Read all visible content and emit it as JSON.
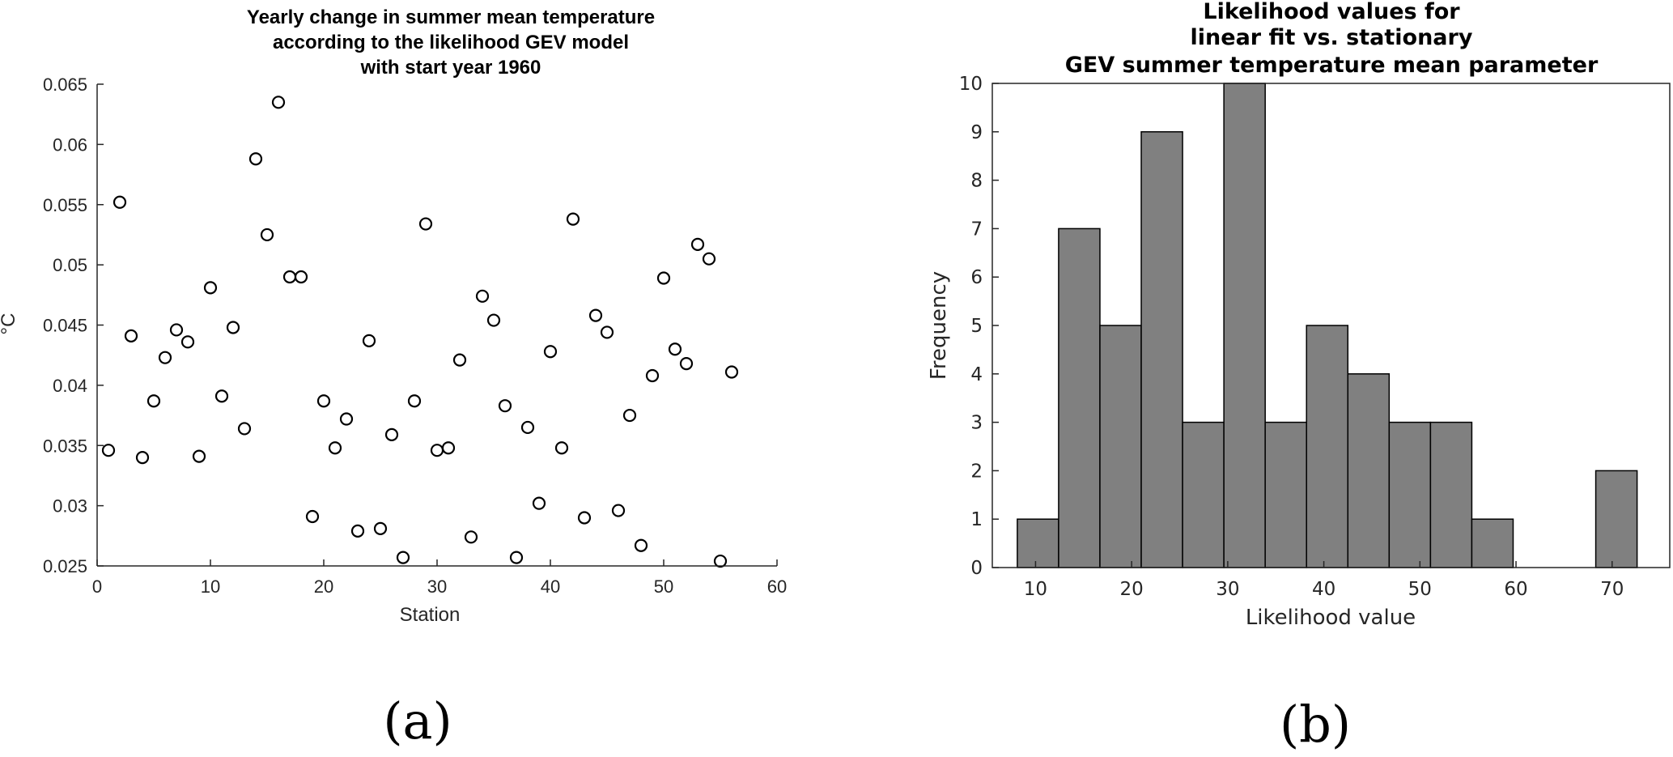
{
  "chart_data": [
    {
      "type": "scatter",
      "title": [
        "Yearly change in summer mean temperature",
        "according to the likelihood GEV model",
        "with start year 1960"
      ],
      "xlabel": "Station",
      "ylabel": "°C",
      "xlim": [
        0,
        60
      ],
      "ylim": [
        0.025,
        0.065
      ],
      "xticks": [
        0,
        10,
        20,
        30,
        40,
        50,
        60
      ],
      "yticks": [
        0.025,
        0.03,
        0.035,
        0.04,
        0.045,
        0.05,
        0.055,
        0.06,
        0.065
      ],
      "ytick_labels": [
        "0.025",
        "0.03",
        "0.035",
        "0.04",
        "0.045",
        "0.05",
        "0.055",
        "0.06",
        "0.065"
      ],
      "x": [
        1,
        2,
        3,
        4,
        5,
        6,
        7,
        8,
        9,
        10,
        11,
        12,
        13,
        14,
        15,
        16,
        17,
        18,
        19,
        20,
        21,
        22,
        23,
        24,
        25,
        26,
        27,
        28,
        29,
        30,
        31,
        32,
        33,
        34,
        35,
        36,
        37,
        38,
        39,
        40,
        41,
        42,
        43,
        44,
        45,
        46,
        47,
        48,
        49,
        50,
        51,
        52,
        53,
        54,
        55,
        56
      ],
      "y": [
        0.0346,
        0.0552,
        0.0441,
        0.034,
        0.0387,
        0.0423,
        0.0446,
        0.0436,
        0.0341,
        0.0481,
        0.0391,
        0.0448,
        0.0364,
        0.0588,
        0.0525,
        0.0635,
        0.049,
        0.049,
        0.0291,
        0.0387,
        0.0348,
        0.0372,
        0.0279,
        0.0437,
        0.0281,
        0.0359,
        0.0257,
        0.0387,
        0.0534,
        0.0346,
        0.0348,
        0.0421,
        0.0274,
        0.0474,
        0.0454,
        0.0383,
        0.0257,
        0.0365,
        0.0302,
        0.0428,
        0.0348,
        0.0538,
        0.029,
        0.0458,
        0.0444,
        0.0296,
        0.0375,
        0.0267,
        0.0408,
        0.0489,
        0.043,
        0.0418,
        0.0517,
        0.0505,
        0.0254,
        0.0411
      ],
      "subcaption": "(a)"
    },
    {
      "type": "bar",
      "title": [
        "Likelihood values for",
        "linear fit vs. stationary",
        "GEV summer temperature mean parameter"
      ],
      "xlabel": "Likelihood value",
      "ylabel": "Frequency",
      "xlim": [
        5.5,
        76
      ],
      "ylim": [
        0,
        10
      ],
      "xticks": [
        10,
        20,
        30,
        40,
        50,
        60,
        70
      ],
      "yticks": [
        0,
        1,
        2,
        3,
        4,
        5,
        6,
        7,
        8,
        9,
        10
      ],
      "bin_edges": [
        8.1,
        12.4,
        16.7,
        21.0,
        25.3,
        29.6,
        33.9,
        38.2,
        42.5,
        46.8,
        51.1,
        55.4,
        59.7,
        64.0,
        68.3,
        72.6
      ],
      "counts": [
        1,
        7,
        5,
        9,
        3,
        10,
        3,
        5,
        4,
        3,
        3,
        1,
        0,
        0,
        2
      ],
      "subcaption": "(b)"
    }
  ],
  "colors": {
    "bar_fill": "#808080",
    "bar_edge": "#000000",
    "axis": "#262626",
    "marker": "#000000"
  }
}
